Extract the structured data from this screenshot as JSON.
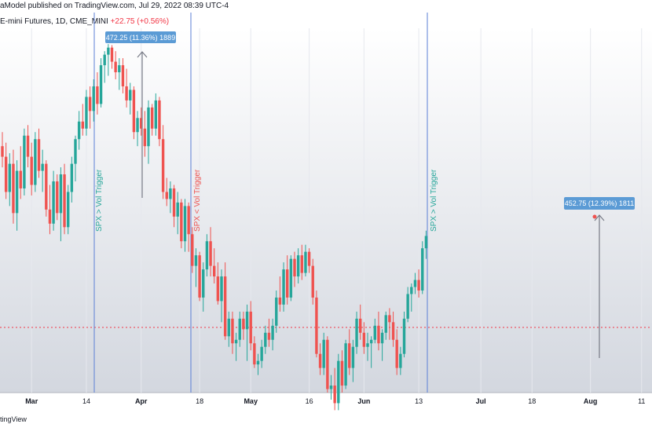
{
  "header": {
    "published": "aModel published on TradingView.com, Jul 29, 2022 08:39 UTC-4",
    "symbol_prefix": "E-mini Futures, 1D, CME_MINI",
    "symbol_change": "+22.75 (+0.56%)"
  },
  "footer": {
    "brand": "tingView"
  },
  "colors": {
    "up": "#26a69a",
    "down": "#ef5350",
    "vline": "#5b7fd6",
    "callout": "#5b9bd5",
    "hline": "#f23645"
  },
  "chart_data": {
    "type": "candlestick",
    "x_tick_labels": [
      {
        "label": "Mar",
        "bold": true,
        "index": 8
      },
      {
        "label": "14",
        "bold": false,
        "index": 23
      },
      {
        "label": "Apr",
        "bold": true,
        "index": 38
      },
      {
        "label": "18",
        "bold": false,
        "index": 54
      },
      {
        "label": "May",
        "bold": true,
        "index": 68
      },
      {
        "label": "16",
        "bold": false,
        "index": 84
      },
      {
        "label": "Jun",
        "bold": true,
        "index": 99
      },
      {
        "label": "13",
        "bold": false,
        "index": 114
      },
      {
        "label": "Jul",
        "bold": true,
        "index": 131
      },
      {
        "label": "18",
        "bold": false,
        "index": 145
      },
      {
        "label": "Aug",
        "bold": true,
        "index": 161
      },
      {
        "label": "11",
        "bold": false,
        "index": 175
      }
    ],
    "ylim": [
      3650,
      4685
    ],
    "candles": [
      [
        4350,
        4390,
        4290,
        4320
      ],
      [
        4320,
        4360,
        4200,
        4220
      ],
      [
        4220,
        4330,
        4180,
        4300
      ],
      [
        4300,
        4340,
        4130,
        4160
      ],
      [
        4160,
        4310,
        4110,
        4280
      ],
      [
        4280,
        4350,
        4200,
        4230
      ],
      [
        4230,
        4400,
        4210,
        4380
      ],
      [
        4380,
        4410,
        4290,
        4320
      ],
      [
        4320,
        4360,
        4210,
        4240
      ],
      [
        4240,
        4390,
        4220,
        4370
      ],
      [
        4370,
        4400,
        4260,
        4280
      ],
      [
        4280,
        4340,
        4220,
        4300
      ],
      [
        4300,
        4310,
        4150,
        4170
      ],
      [
        4170,
        4240,
        4100,
        4130
      ],
      [
        4130,
        4280,
        4110,
        4250
      ],
      [
        4250,
        4270,
        4140,
        4160
      ],
      [
        4160,
        4290,
        4080,
        4270
      ],
      [
        4270,
        4300,
        4100,
        4120
      ],
      [
        4120,
        4240,
        4100,
        4220
      ],
      [
        4220,
        4320,
        4190,
        4300
      ],
      [
        4300,
        4380,
        4250,
        4370
      ],
      [
        4370,
        4450,
        4340,
        4420
      ],
      [
        4420,
        4470,
        4380,
        4400
      ],
      [
        4400,
        4510,
        4380,
        4490
      ],
      [
        4490,
        4520,
        4400,
        4450
      ],
      [
        4450,
        4540,
        4420,
        4520
      ],
      [
        4520,
        4560,
        4440,
        4470
      ],
      [
        4470,
        4600,
        4460,
        4580
      ],
      [
        4580,
        4620,
        4530,
        4610
      ],
      [
        4610,
        4640,
        4550,
        4630
      ],
      [
        4630,
        4637,
        4570,
        4590
      ],
      [
        4590,
        4620,
        4540,
        4560
      ],
      [
        4560,
        4600,
        4510,
        4580
      ],
      [
        4580,
        4600,
        4500,
        4520
      ],
      [
        4520,
        4570,
        4460,
        4480
      ],
      [
        4480,
        4530,
        4440,
        4510
      ],
      [
        4510,
        4520,
        4370,
        4390
      ],
      [
        4390,
        4450,
        4350,
        4430
      ],
      [
        4430,
        4460,
        4380,
        4400
      ],
      [
        4400,
        4450,
        4320,
        4350
      ],
      [
        4350,
        4480,
        4300,
        4460
      ],
      [
        4460,
        4470,
        4380,
        4400
      ],
      [
        4400,
        4500,
        4380,
        4480
      ],
      [
        4480,
        4490,
        4350,
        4370
      ],
      [
        4370,
        4410,
        4200,
        4220
      ],
      [
        4220,
        4260,
        4180,
        4200
      ],
      [
        4200,
        4250,
        4160,
        4230
      ],
      [
        4230,
        4240,
        4120,
        4150
      ],
      [
        4150,
        4220,
        4100,
        4190
      ],
      [
        4190,
        4200,
        4060,
        4080
      ],
      [
        4080,
        4200,
        4050,
        4180
      ],
      [
        4180,
        4190,
        4050,
        4100
      ],
      [
        4100,
        4120,
        3990,
        4010
      ],
      [
        4010,
        4060,
        3950,
        4040
      ],
      [
        4040,
        4050,
        3910,
        3920
      ],
      [
        3920,
        4020,
        3880,
        4000
      ],
      [
        4000,
        4100,
        3980,
        4080
      ],
      [
        4080,
        4120,
        3980,
        4010
      ],
      [
        4010,
        4060,
        3960,
        3980
      ],
      [
        3980,
        4020,
        3900,
        3910
      ],
      [
        3910,
        4000,
        3850,
        3980
      ],
      [
        3980,
        4020,
        3800,
        3810
      ],
      [
        3810,
        3880,
        3780,
        3860
      ],
      [
        3860,
        3880,
        3760,
        3790
      ],
      [
        3790,
        3820,
        3740,
        3800
      ],
      [
        3800,
        3880,
        3780,
        3860
      ],
      [
        3860,
        3880,
        3800,
        3830
      ],
      [
        3830,
        3900,
        3740,
        3880
      ],
      [
        3880,
        3910,
        3770,
        3790
      ],
      [
        3790,
        3810,
        3720,
        3730
      ],
      [
        3730,
        3760,
        3700,
        3740
      ],
      [
        3740,
        3800,
        3720,
        3780
      ],
      [
        3780,
        3840,
        3760,
        3820
      ],
      [
        3820,
        3860,
        3780,
        3800
      ],
      [
        3800,
        3860,
        3770,
        3840
      ],
      [
        3840,
        3940,
        3820,
        3920
      ],
      [
        3920,
        3980,
        3880,
        3900
      ],
      [
        3900,
        4020,
        3880,
        4000
      ],
      [
        4000,
        4040,
        3900,
        3920
      ],
      [
        3920,
        4040,
        3910,
        4030
      ],
      [
        4030,
        4050,
        3950,
        3980
      ],
      [
        3980,
        4060,
        3960,
        4040
      ],
      [
        4040,
        4070,
        3970,
        3990
      ],
      [
        3990,
        4070,
        3980,
        4050
      ],
      [
        4050,
        4060,
        3990,
        4010
      ],
      [
        4010,
        4030,
        3900,
        3920
      ],
      [
        3920,
        3940,
        3750,
        3760
      ],
      [
        3760,
        3790,
        3700,
        3720
      ],
      [
        3720,
        3820,
        3700,
        3800
      ],
      [
        3800,
        3810,
        3650,
        3660
      ],
      [
        3660,
        3700,
        3630,
        3670
      ],
      [
        3670,
        3720,
        3600,
        3620
      ],
      [
        3620,
        3760,
        3600,
        3740
      ],
      [
        3740,
        3770,
        3650,
        3670
      ],
      [
        3670,
        3800,
        3660,
        3790
      ],
      [
        3790,
        3830,
        3700,
        3720
      ],
      [
        3720,
        3800,
        3680,
        3780
      ],
      [
        3780,
        3880,
        3760,
        3860
      ],
      [
        3860,
        3900,
        3800,
        3820
      ],
      [
        3820,
        3850,
        3760,
        3780
      ],
      [
        3780,
        3820,
        3740,
        3790
      ],
      [
        3790,
        3810,
        3720,
        3800
      ],
      [
        3800,
        3860,
        3790,
        3840
      ],
      [
        3840,
        3880,
        3770,
        3790
      ],
      [
        3790,
        3830,
        3740,
        3820
      ],
      [
        3820,
        3880,
        3800,
        3870
      ],
      [
        3870,
        3890,
        3800,
        3850
      ],
      [
        3850,
        3880,
        3780,
        3800
      ],
      [
        3800,
        3830,
        3700,
        3720
      ],
      [
        3720,
        3780,
        3700,
        3760
      ],
      [
        3760,
        3880,
        3750,
        3860
      ],
      [
        3860,
        3950,
        3850,
        3930
      ],
      [
        3930,
        3960,
        3880,
        3950
      ],
      [
        3950,
        3990,
        3930,
        3970
      ],
      [
        3970,
        4000,
        3920,
        3940
      ],
      [
        3940,
        4080,
        3930,
        4060
      ],
      [
        4060,
        4110,
        4030,
        4095
      ]
    ]
  }
}
